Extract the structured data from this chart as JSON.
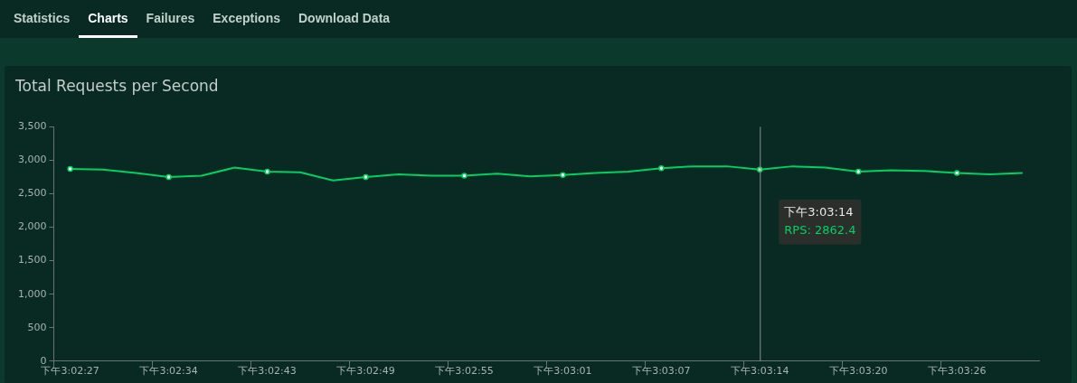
{
  "chart_data": {
    "type": "line",
    "title": "Total Requests per Second",
    "categories": [
      "下午3:02:27",
      null,
      null,
      "下午3:02:34",
      null,
      null,
      "下午3:02:43",
      null,
      null,
      "下午3:02:49",
      null,
      null,
      "下午3:02:55",
      null,
      null,
      "下午3:03:01",
      null,
      null,
      "下午3:03:07",
      null,
      null,
      "下午3:03:14",
      null,
      null,
      "下午3:03:20",
      null,
      null,
      "下午3:03:26",
      null,
      null
    ],
    "series": [
      {
        "color": "#00d160",
        "values": [
          2870,
          2860,
          2810,
          2750,
          2770,
          2890,
          2830,
          2820,
          2700,
          2750,
          2790,
          2770,
          2770,
          2800,
          2760,
          2780,
          2810,
          2830,
          2880,
          2910,
          2910,
          2862.4,
          2910,
          2890,
          2830,
          2850,
          2840,
          2810,
          2790,
          2810
        ]
      }
    ],
    "ylim": [
      0,
      3500
    ],
    "yticks": [
      0,
      {
        "value": 500,
        "label": "500"
      },
      {
        "value": 1000,
        "label": "1,000"
      },
      {
        "value": 1500,
        "label": "1,500"
      },
      {
        "value": 2000,
        "label": "2,000"
      },
      {
        "value": 2500,
        "label": "2,500"
      },
      {
        "value": 3000,
        "label": "3,000"
      },
      {
        "value": 3500,
        "label": "3,500"
      }
    ],
    "line_style": "solid",
    "ref_lines": [
      {
        "axis": "x",
        "value": "下午3:03:14",
        "color": "#8a8f8c"
      }
    ],
    "annotations": [
      "Statistics",
      "Charts",
      "Failures",
      "Exceptions",
      "Download Data",
      "下午3:03:14",
      "RPS: 2862.4"
    ]
  }
}
